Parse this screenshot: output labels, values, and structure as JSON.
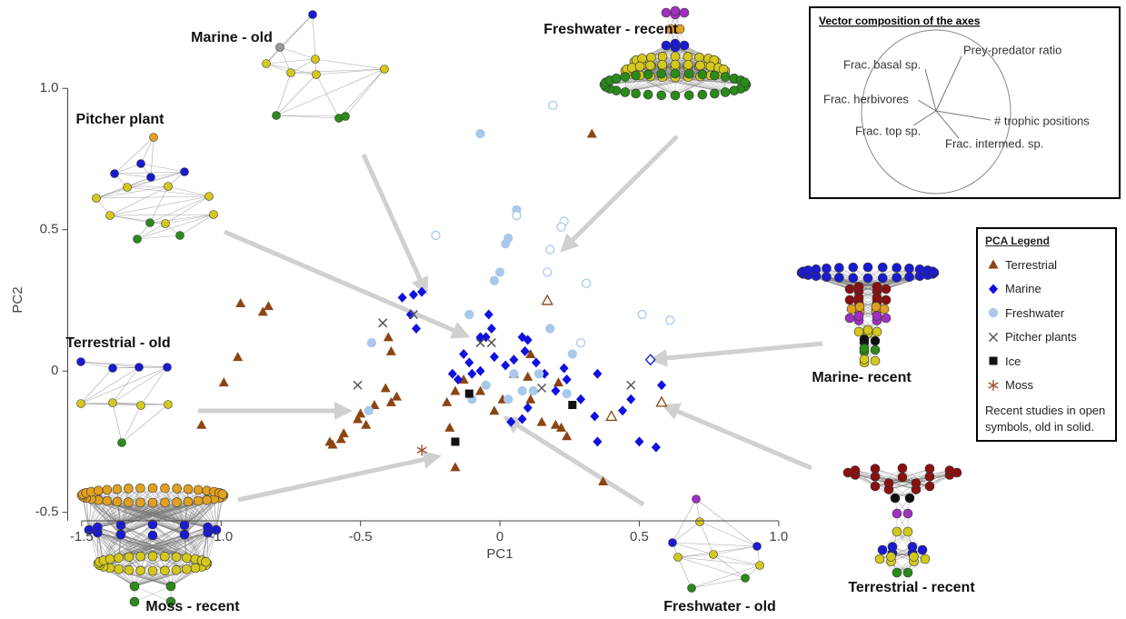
{
  "chart_data": {
    "type": "scatter",
    "xlabel": "PC1",
    "ylabel": "PC2",
    "xlim": [
      -1.55,
      1.02
    ],
    "ylim": [
      -0.53,
      1.02
    ],
    "xticks": [
      -1.5,
      {
        "value": -1,
        "label": "-1.0"
      },
      -0.5,
      0,
      0.5,
      {
        "value": 1,
        "label": "1.0"
      }
    ],
    "yticks": [
      -0.5,
      0,
      0.5,
      {
        "value": 1,
        "label": "1.0"
      }
    ],
    "legend_title": "PCA Legend",
    "legend_note": "Recent studies in open symbols, old in solid.",
    "vector_panel": {
      "title": "Vector composition of the axes",
      "labels": [
        "Frac. basal sp.",
        "Prey-predator ratio",
        "Frac. herbivores",
        "# trophic positions",
        "Frac. top sp.",
        "Frac. intermed. sp."
      ]
    },
    "annotations": [
      "Marine - old",
      "Freshwater -  recent",
      "Pitcher plant",
      "Terrestrial -  old",
      "Marine- recent",
      "Moss - recent",
      "Freshwater - old",
      "Terrestrial - recent"
    ],
    "series": [
      {
        "name": "Terrestrial",
        "color": "#8b4513",
        "marker": "triangle",
        "x": [
          0.33,
          -0.94,
          -0.99,
          -1.07,
          -0.93,
          -0.85,
          -0.83,
          -0.61,
          -0.6,
          -0.57,
          -0.56,
          -0.51,
          -0.5,
          -0.48,
          -0.45,
          -0.41,
          -0.39,
          -0.37,
          -0.4,
          -0.39,
          -0.16,
          -0.18,
          -0.19,
          -0.16,
          -0.07,
          -0.02,
          0.01,
          0.05,
          0.1,
          0.11,
          0.15,
          0.2,
          0.22,
          0.24,
          0.21,
          0.37,
          0.11,
          -0.13,
          0.17,
          0.58,
          0.4
        ],
        "y": [
          0.84,
          0.05,
          -0.04,
          -0.19,
          0.24,
          0.21,
          0.23,
          -0.25,
          -0.26,
          -0.24,
          -0.22,
          -0.17,
          -0.15,
          -0.19,
          -0.12,
          -0.06,
          -0.11,
          -0.09,
          0.12,
          0.07,
          -0.34,
          -0.2,
          -0.11,
          -0.07,
          -0.07,
          -0.14,
          -0.1,
          -0.01,
          -0.02,
          -0.1,
          -0.18,
          -0.19,
          -0.2,
          -0.23,
          -0.04,
          -0.39,
          0.06,
          -0.03,
          0.25,
          -0.11,
          -0.16
        ],
        "open": [
          false,
          false,
          false,
          false,
          false,
          false,
          false,
          false,
          false,
          false,
          false,
          false,
          false,
          false,
          false,
          false,
          false,
          false,
          false,
          false,
          false,
          false,
          false,
          false,
          false,
          false,
          false,
          false,
          false,
          false,
          false,
          false,
          false,
          false,
          false,
          false,
          false,
          false,
          true,
          true,
          true
        ]
      },
      {
        "name": "Marine",
        "color": "#1010e0",
        "marker": "diamond",
        "x": [
          -0.35,
          -0.31,
          -0.28,
          -0.32,
          -0.3,
          -0.04,
          -0.03,
          -0.07,
          -0.05,
          -0.13,
          -0.11,
          -0.17,
          -0.15,
          -0.1,
          -0.07,
          -0.02,
          0.02,
          0.08,
          0.09,
          0.1,
          0.05,
          0.13,
          0.16,
          0.23,
          0.24,
          0.2,
          0.1,
          0.04,
          0.08,
          0.35,
          0.44,
          0.34,
          0.35,
          0.5,
          0.56,
          0.58,
          0.29,
          0.47,
          0.54
        ],
        "y": [
          0.26,
          0.27,
          0.28,
          0.2,
          0.15,
          0.2,
          0.15,
          0.12,
          0.12,
          0.06,
          0.03,
          -0.01,
          -0.03,
          -0.01,
          0.0,
          0.05,
          0.02,
          0.12,
          0.07,
          0.11,
          0.04,
          0.03,
          -0.01,
          0.01,
          -0.03,
          -0.07,
          -0.13,
          -0.18,
          -0.17,
          -0.01,
          -0.14,
          -0.16,
          -0.25,
          -0.25,
          -0.27,
          -0.05,
          -0.1,
          -0.1,
          0.04
        ],
        "open": [
          false,
          false,
          false,
          false,
          false,
          false,
          false,
          false,
          false,
          false,
          false,
          false,
          false,
          false,
          false,
          false,
          false,
          false,
          false,
          false,
          false,
          false,
          false,
          false,
          false,
          false,
          false,
          false,
          false,
          false,
          false,
          false,
          false,
          false,
          false,
          false,
          false,
          false,
          true
        ]
      },
      {
        "name": "Freshwater",
        "color": "#a8c8ec",
        "marker": "circle",
        "x": [
          -0.07,
          0.06,
          0.03,
          0.02,
          0.0,
          -0.02,
          -0.11,
          0.05,
          0.08,
          0.03,
          0.12,
          0.26,
          0.18,
          0.14,
          -0.46,
          -0.47,
          -0.1,
          -0.05,
          0.24,
          0.19,
          -0.23,
          0.06,
          0.23,
          0.22,
          0.18,
          0.17,
          0.31,
          0.51,
          0.61,
          0.29
        ],
        "y": [
          0.84,
          0.57,
          0.47,
          0.45,
          0.35,
          0.32,
          0.2,
          -0.01,
          -0.07,
          -0.1,
          -0.07,
          0.06,
          0.15,
          -0.01,
          0.1,
          -0.14,
          -0.1,
          -0.05,
          -0.08,
          0.94,
          0.48,
          0.55,
          0.53,
          0.51,
          0.43,
          0.35,
          0.31,
          0.2,
          0.18,
          0.1
        ],
        "open": [
          false,
          false,
          false,
          false,
          false,
          false,
          false,
          false,
          false,
          false,
          false,
          false,
          false,
          false,
          false,
          false,
          false,
          false,
          false,
          true,
          true,
          true,
          true,
          true,
          true,
          true,
          true,
          true,
          true,
          true
        ]
      },
      {
        "name": "Pitcher plants",
        "color": "#555555",
        "marker": "x",
        "x": [
          -0.42,
          -0.51,
          -0.31,
          -0.07,
          -0.03,
          0.15,
          0.47
        ],
        "y": [
          0.17,
          -0.05,
          0.2,
          0.1,
          0.1,
          -0.06,
          -0.05
        ]
      },
      {
        "name": "Ice",
        "color": "#111111",
        "marker": "square",
        "x": [
          -0.16,
          0.26,
          -0.11
        ],
        "y": [
          -0.25,
          -0.12,
          -0.08
        ]
      },
      {
        "name": "Moss",
        "color": "#a0522d",
        "marker": "asterisk",
        "x": [
          -0.28
        ],
        "y": [
          -0.28
        ]
      }
    ]
  }
}
